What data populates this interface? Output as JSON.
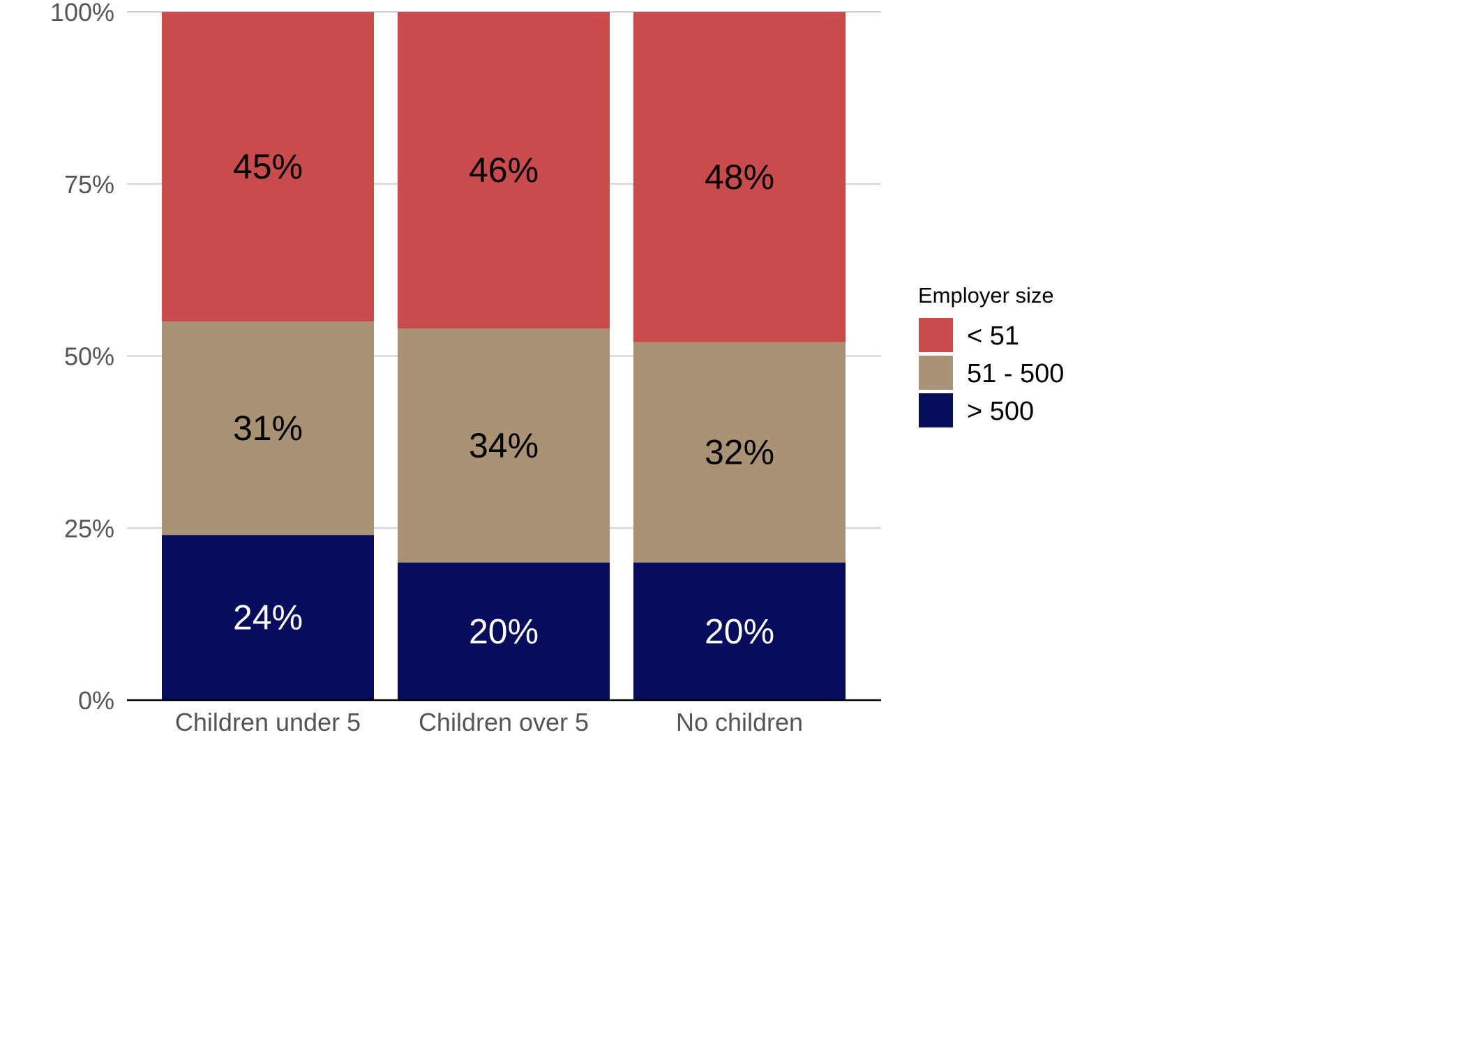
{
  "chart_data": {
    "type": "bar",
    "stacked": true,
    "categories": [
      "Children under 5",
      "Children over 5",
      "No children"
    ],
    "series": [
      {
        "name": "> 500",
        "values": [
          24,
          20,
          20
        ],
        "labels": [
          "24%",
          "20%",
          "20%"
        ],
        "color": "#060d5c",
        "label_color": "#ffffff"
      },
      {
        "name": "51 - 500",
        "values": [
          31,
          34,
          32
        ],
        "labels": [
          "31%",
          "34%",
          "32%"
        ],
        "color": "#a99374",
        "label_color": "#000000"
      },
      {
        "name": "< 51",
        "values": [
          45,
          46,
          48
        ],
        "labels": [
          "45%",
          "46%",
          "48%"
        ],
        "color": "#c94b4b",
        "label_color": "#000000"
      }
    ],
    "ylim": [
      0,
      100
    ],
    "yticks": [
      0,
      25,
      50,
      75,
      100
    ],
    "ytick_labels": [
      "0%",
      "25%",
      "50%",
      "75%",
      "100%"
    ],
    "xlabel": "",
    "ylabel": "",
    "legend": {
      "title": "Employer size",
      "placement": "right",
      "order": [
        "< 51",
        "51 - 500",
        "> 500"
      ]
    },
    "grid": {
      "horizontal": true,
      "vertical": false,
      "color": "#d0d0d0"
    },
    "axis_color": "#000000",
    "tick_label_color": "#555555"
  }
}
